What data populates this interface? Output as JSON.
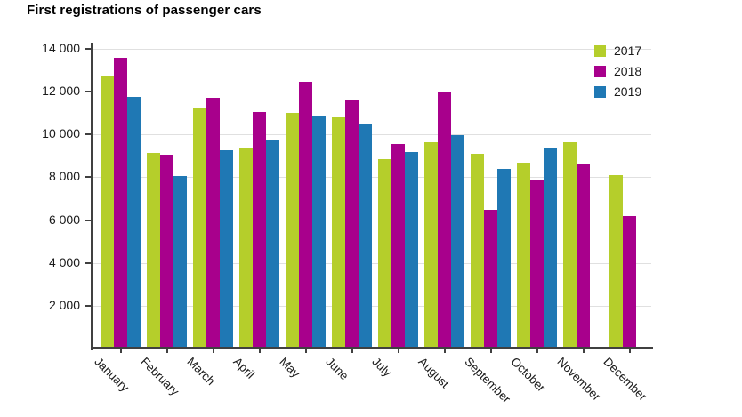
{
  "title": "First registrations of passenger cars",
  "colors": {
    "background": "#ffffff",
    "gridline": "#e0e0e0",
    "axis": "#404040",
    "text": "#1a1a1a",
    "series_2017": "#b5ce2b",
    "series_2018": "#a8008c",
    "series_2019": "#1f78b4"
  },
  "axes": {
    "y_ticks": [
      {
        "value": 2000,
        "label": "2 000"
      },
      {
        "value": 4000,
        "label": "4 000"
      },
      {
        "value": 6000,
        "label": "6 000"
      },
      {
        "value": 8000,
        "label": "8 000"
      },
      {
        "value": 10000,
        "label": "10 000"
      },
      {
        "value": 12000,
        "label": "12 000"
      },
      {
        "value": 14000,
        "label": "14 000"
      }
    ]
  },
  "chart_data": {
    "type": "bar",
    "title": "First registrations of passenger cars",
    "xlabel": "",
    "ylabel": "",
    "ylim": [
      0,
      14000
    ],
    "y_tick_step": 2000,
    "grid": true,
    "legend_position": "top-right",
    "categories": [
      "January",
      "February",
      "March",
      "April",
      "May",
      "June",
      "July",
      "August",
      "September",
      "October",
      "November",
      "December"
    ],
    "series": [
      {
        "name": "2017",
        "color": "#b5ce2b",
        "values": [
          12750,
          9150,
          11200,
          9400,
          11000,
          10800,
          8850,
          9650,
          9100,
          8700,
          9650,
          8100
        ]
      },
      {
        "name": "2018",
        "color": "#a8008c",
        "values": [
          13600,
          9050,
          11700,
          11050,
          12450,
          11600,
          9550,
          12000,
          6500,
          7900,
          8650,
          6200
        ]
      },
      {
        "name": "2019",
        "color": "#1f78b4",
        "values": [
          11750,
          8050,
          9250,
          9750,
          10850,
          10450,
          9200,
          9950,
          8400,
          9350,
          null,
          null
        ]
      }
    ]
  }
}
